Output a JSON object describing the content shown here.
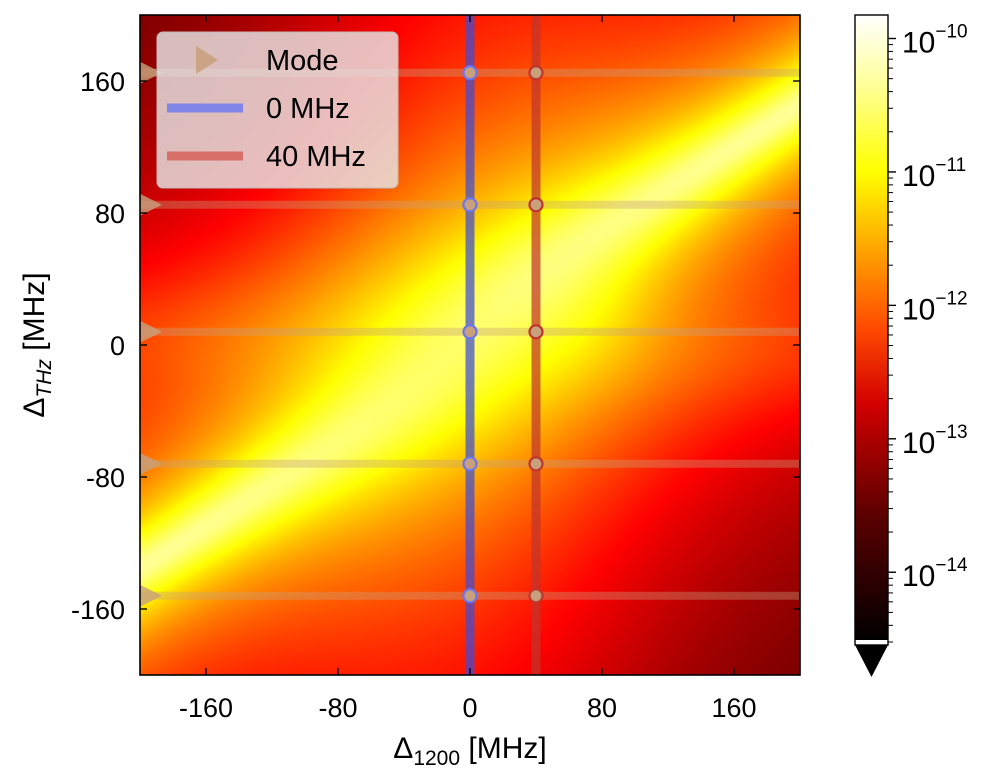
{
  "chart_data": {
    "type": "heatmap",
    "xlabel": "Δ",
    "xlabel_sub": "1200",
    "xlabel_unit": " [MHz]",
    "ylabel": "Δ",
    "ylabel_sub": "THz",
    "ylabel_unit": " [MHz]",
    "xlim": [
      -200,
      200
    ],
    "ylim": [
      -200,
      200
    ],
    "x_ticks": [
      -160,
      -80,
      0,
      80,
      160
    ],
    "y_ticks": [
      -160,
      -80,
      0,
      80,
      160
    ],
    "x_tick_labels": [
      "-160",
      "-80",
      "0",
      "80",
      "160"
    ],
    "y_tick_labels": [
      "-160",
      "-80",
      "0",
      "80",
      "160"
    ],
    "colorscale": "hot",
    "colorbar": {
      "scale": "log",
      "range": [
        3e-15,
        1.5e-10
      ],
      "extend": "min",
      "ticks": [
        {
          "value": 1e-10,
          "base": "10",
          "exp": "−10"
        },
        {
          "value": 1e-11,
          "base": "10",
          "exp": "−11"
        },
        {
          "value": 1e-12,
          "base": "10",
          "exp": "−12"
        },
        {
          "value": 1e-13,
          "base": "10",
          "exp": "−13"
        },
        {
          "value": 1e-14,
          "base": "10",
          "exp": "−14"
        }
      ]
    },
    "modes_y": [
      165,
      85,
      8,
      -72,
      -152
    ],
    "series": [
      {
        "name": "Mode",
        "type": "mode-marker",
        "color": "#c8a07c",
        "y": [
          165,
          85,
          8,
          -72,
          -152
        ]
      },
      {
        "name": "0 MHz",
        "type": "vertical-cut",
        "x": 0,
        "color": "#3f4cd6",
        "points_y": [
          165,
          85,
          8,
          -72,
          -152
        ]
      },
      {
        "name": "40 MHz",
        "type": "vertical-cut",
        "x": 40,
        "color": "#c0342c",
        "points_y": [
          165,
          85,
          8,
          -72,
          -152
        ]
      }
    ],
    "legend": {
      "placement": "top-left",
      "entries": [
        {
          "label": "Mode",
          "marker": "triangle-right",
          "color": "#c8a07c"
        },
        {
          "label": "0 MHz",
          "marker": "line",
          "color": "#7f86e8"
        },
        {
          "label": "40 MHz",
          "marker": "line",
          "color": "#d8706a"
        }
      ]
    }
  }
}
